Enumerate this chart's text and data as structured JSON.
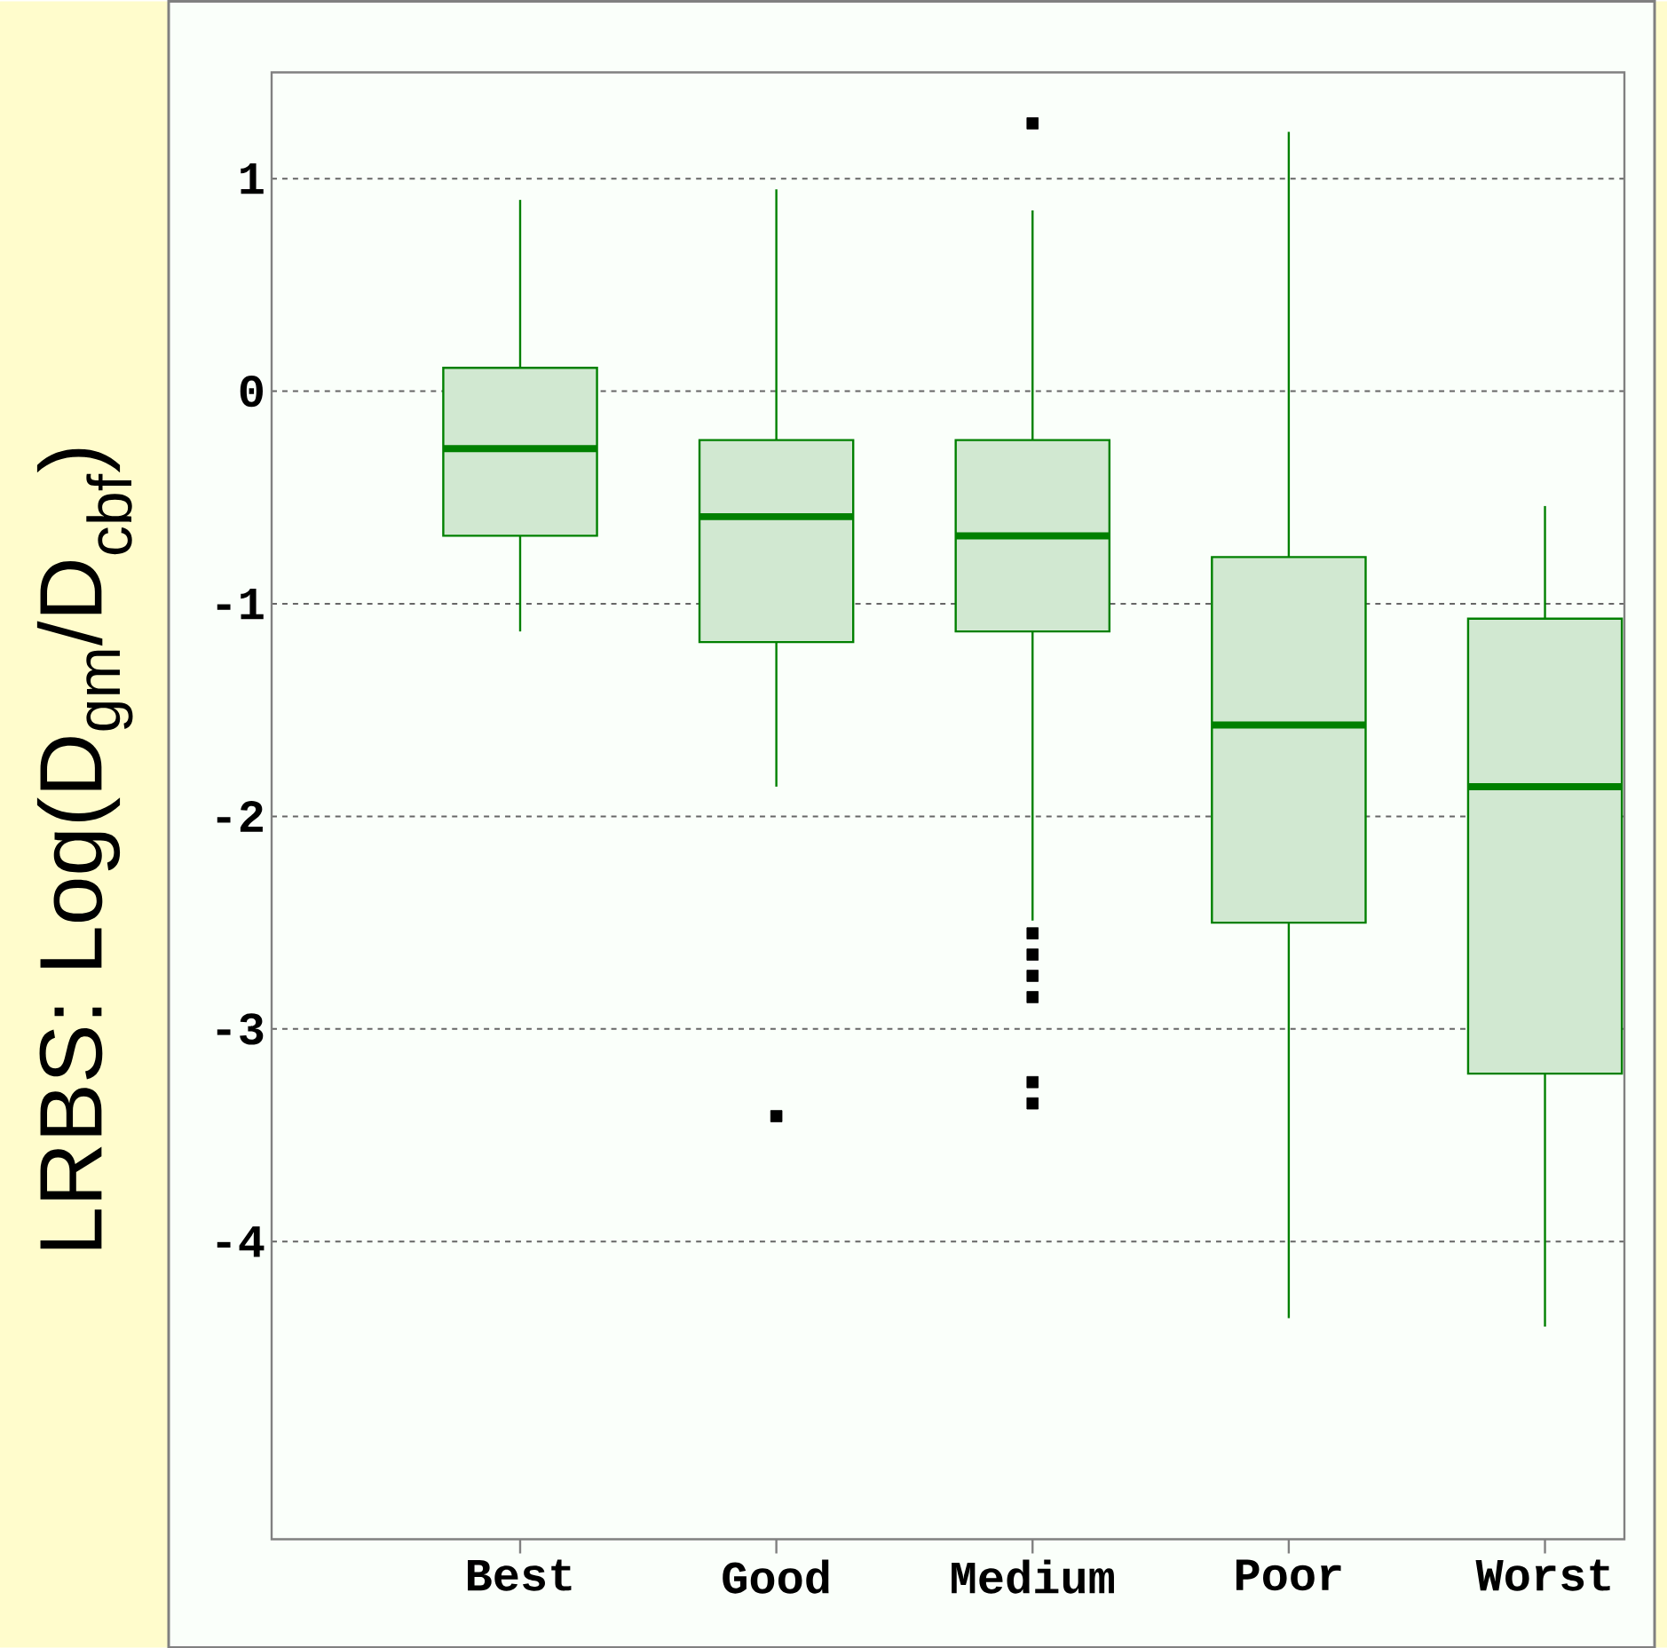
{
  "chart_data": {
    "type": "box",
    "ylabel": "LRBS: Log(D$_{gm}$/D$_{cbf}$)",
    "categories": [
      "Best",
      "Good",
      "Medium",
      "Poor",
      "Worst"
    ],
    "boxes": [
      {
        "low": -1.13,
        "q1": -0.68,
        "median": -0.27,
        "q3": 0.11,
        "high": 0.9
      },
      {
        "low": -1.86,
        "q1": -1.18,
        "median": -0.59,
        "q3": -0.23,
        "high": 0.95,
        "outliers": [
          -3.41
        ]
      },
      {
        "low": -2.49,
        "q1": -1.13,
        "median": -0.68,
        "q3": -0.23,
        "high": 0.85,
        "outliers": [
          1.26,
          -2.55,
          -2.65,
          -2.75,
          -2.85,
          -3.25,
          -3.35
        ]
      },
      {
        "low": -4.36,
        "q1": -2.5,
        "median": -1.57,
        "q3": -0.78,
        "high": 1.22
      },
      {
        "low": -4.4,
        "q1": -3.21,
        "median": -1.86,
        "q3": -1.07,
        "high": -0.54
      }
    ],
    "color": "#008000",
    "marker": "square",
    "ylim": [
      -5.4,
      1.5
    ],
    "yticks": [
      -4,
      -3,
      -2,
      -1,
      0,
      1
    ],
    "grid": "y"
  }
}
